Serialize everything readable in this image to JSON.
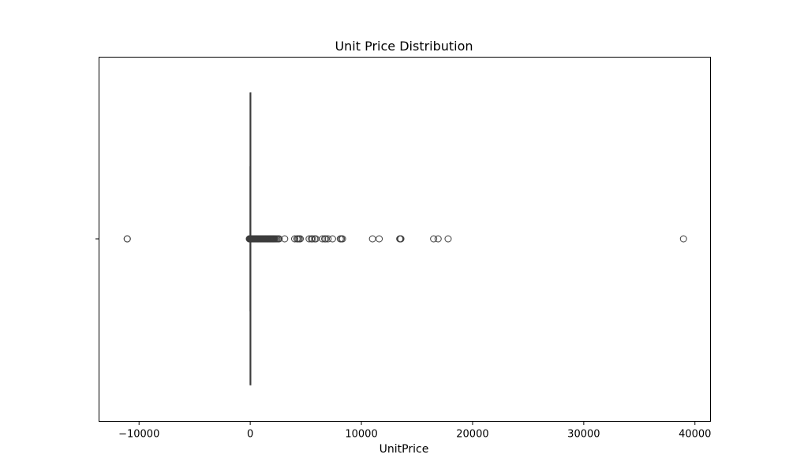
{
  "chart_data": {
    "type": "box",
    "title": "Unit Price Distribution",
    "xlabel": "UnitPrice",
    "ylabel": "",
    "orientation": "horizontal",
    "xlim": [
      -13600,
      41400
    ],
    "x_ticks": [
      {
        "value": -10000,
        "label": "−10000"
      },
      {
        "value": 0,
        "label": "0"
      },
      {
        "value": 10000,
        "label": "10000"
      },
      {
        "value": 20000,
        "label": "20000"
      },
      {
        "value": 30000,
        "label": "30000"
      },
      {
        "value": 40000,
        "label": "40000"
      }
    ],
    "box": {
      "whisker_low": -2,
      "q1": 1.25,
      "median": 2.08,
      "q3": 4.13,
      "whisker_high": 8.45
    },
    "outliers": [
      -11062,
      -11062,
      -80,
      -50,
      -40,
      -30,
      -20,
      -15,
      -12,
      -10,
      10,
      12,
      15,
      18,
      20,
      25,
      30,
      35,
      40,
      45,
      50,
      60,
      70,
      80,
      90,
      100,
      110,
      125,
      140,
      160,
      180,
      200,
      220,
      250,
      280,
      300,
      350,
      400,
      450,
      500,
      550,
      600,
      650,
      700,
      750,
      800,
      850,
      900,
      950,
      1000,
      1050,
      1100,
      1150,
      1200,
      1250,
      1300,
      1350,
      1400,
      1450,
      1500,
      1550,
      1600,
      1650,
      1700,
      1750,
      1800,
      1850,
      1900,
      1950,
      2000,
      2050,
      2100,
      2150,
      2200,
      2300,
      2400,
      2500,
      2600,
      3100,
      4000,
      4200,
      4300,
      4400,
      4500,
      5300,
      5500,
      5600,
      5800,
      5900,
      6500,
      6700,
      6800,
      7000,
      7400,
      8100,
      8200,
      8300,
      11000,
      11600,
      13450,
      13500,
      13550,
      16500,
      16900,
      17800,
      38970
    ],
    "colors": {
      "outline": "#3d3d3d",
      "box_fill": "#3a76af"
    },
    "grid": false,
    "legend": "none"
  }
}
